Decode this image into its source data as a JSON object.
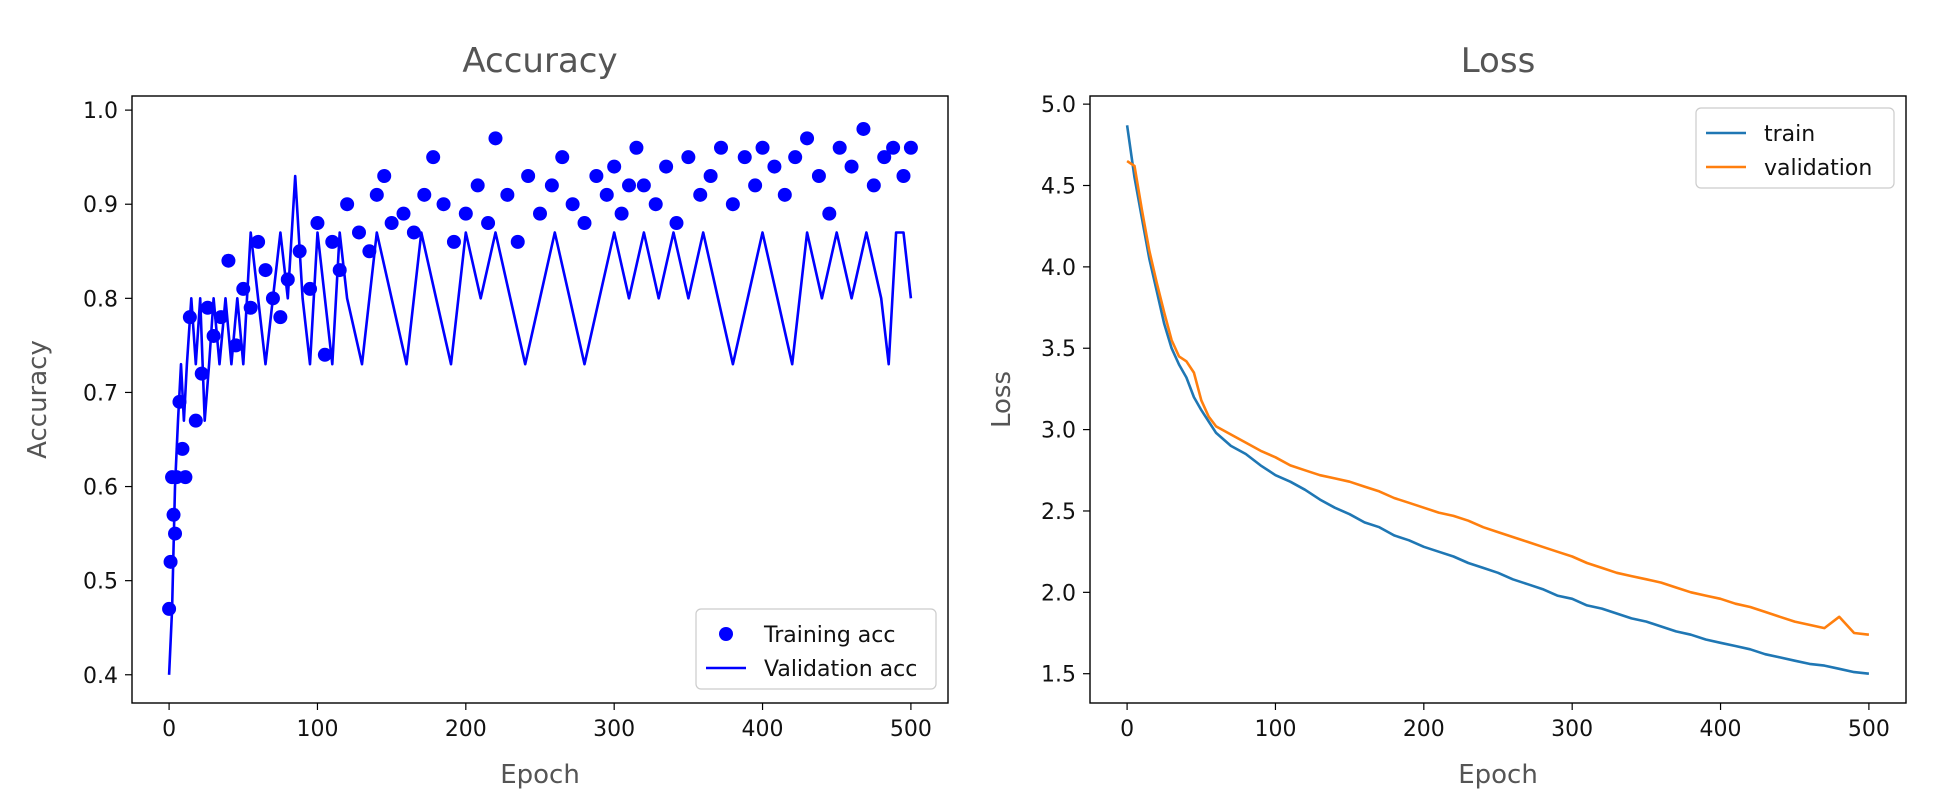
{
  "chart_data": [
    {
      "type": "scatter+line",
      "title": "Accuracy",
      "xlabel": "Epoch",
      "ylabel": "Accuracy",
      "xlim": [
        -25,
        525
      ],
      "ylim": [
        0.37,
        1.015
      ],
      "xticks": [
        0,
        100,
        200,
        300,
        400,
        500
      ],
      "yticks": [
        0.4,
        0.5,
        0.6,
        0.7,
        0.8,
        0.9,
        1.0
      ],
      "ytick_labels": [
        "0.4",
        "0.5",
        "0.6",
        "0.7",
        "0.8",
        "0.9",
        "1.0"
      ],
      "grid": false,
      "legend_loc": "lower right",
      "series": [
        {
          "name": "Training acc",
          "kind": "scatter",
          "color": "#0000ff",
          "x": [
            0,
            1,
            2,
            3,
            4,
            5,
            7,
            9,
            11,
            14,
            18,
            22,
            26,
            30,
            35,
            40,
            45,
            50,
            55,
            60,
            65,
            70,
            75,
            80,
            88,
            95,
            100,
            105,
            110,
            115,
            120,
            128,
            135,
            140,
            145,
            150,
            158,
            165,
            172,
            178,
            185,
            192,
            200,
            208,
            215,
            220,
            228,
            235,
            242,
            250,
            258,
            265,
            272,
            280,
            288,
            295,
            300,
            305,
            310,
            315,
            320,
            328,
            335,
            342,
            350,
            358,
            365,
            372,
            380,
            388,
            395,
            400,
            408,
            415,
            422,
            430,
            438,
            445,
            452,
            460,
            468,
            475,
            482,
            488,
            495,
            500
          ],
          "y": [
            0.47,
            0.52,
            0.61,
            0.57,
            0.55,
            0.61,
            0.69,
            0.64,
            0.61,
            0.78,
            0.67,
            0.72,
            0.79,
            0.76,
            0.78,
            0.84,
            0.75,
            0.81,
            0.79,
            0.86,
            0.83,
            0.8,
            0.78,
            0.82,
            0.85,
            0.81,
            0.88,
            0.74,
            0.86,
            0.83,
            0.9,
            0.87,
            0.85,
            0.91,
            0.93,
            0.88,
            0.89,
            0.87,
            0.91,
            0.95,
            0.9,
            0.86,
            0.89,
            0.92,
            0.88,
            0.97,
            0.91,
            0.86,
            0.93,
            0.89,
            0.92,
            0.95,
            0.9,
            0.88,
            0.93,
            0.91,
            0.94,
            0.89,
            0.92,
            0.96,
            0.92,
            0.9,
            0.94,
            0.88,
            0.95,
            0.91,
            0.93,
            0.96,
            0.9,
            0.95,
            0.92,
            0.96,
            0.94,
            0.91,
            0.95,
            0.97,
            0.93,
            0.89,
            0.96,
            0.94,
            0.98,
            0.92,
            0.95,
            0.96,
            0.93,
            0.96
          ]
        },
        {
          "name": "Validation acc",
          "kind": "line",
          "color": "#0000ff",
          "x": [
            0,
            2,
            4,
            6,
            8,
            10,
            12,
            15,
            18,
            21,
            24,
            27,
            30,
            34,
            38,
            42,
            46,
            50,
            55,
            60,
            65,
            70,
            75,
            80,
            85,
            90,
            95,
            100,
            105,
            110,
            115,
            120,
            130,
            140,
            150,
            160,
            170,
            180,
            190,
            200,
            210,
            220,
            230,
            240,
            250,
            260,
            270,
            280,
            290,
            300,
            310,
            320,
            330,
            340,
            350,
            360,
            370,
            380,
            390,
            400,
            410,
            420,
            430,
            440,
            450,
            460,
            470,
            480,
            485,
            490,
            495,
            500
          ],
          "y": [
            0.4,
            0.47,
            0.6,
            0.67,
            0.73,
            0.67,
            0.73,
            0.8,
            0.73,
            0.8,
            0.67,
            0.73,
            0.8,
            0.73,
            0.8,
            0.73,
            0.8,
            0.73,
            0.87,
            0.8,
            0.73,
            0.8,
            0.87,
            0.8,
            0.93,
            0.8,
            0.73,
            0.87,
            0.8,
            0.73,
            0.87,
            0.8,
            0.73,
            0.87,
            0.8,
            0.73,
            0.87,
            0.8,
            0.73,
            0.87,
            0.8,
            0.87,
            0.8,
            0.73,
            0.8,
            0.87,
            0.8,
            0.73,
            0.8,
            0.87,
            0.8,
            0.87,
            0.8,
            0.87,
            0.8,
            0.87,
            0.8,
            0.73,
            0.8,
            0.87,
            0.8,
            0.73,
            0.87,
            0.8,
            0.87,
            0.8,
            0.87,
            0.8,
            0.73,
            0.87,
            0.87,
            0.8
          ]
        }
      ]
    },
    {
      "type": "line",
      "title": "Loss",
      "xlabel": "Epoch",
      "ylabel": "Loss",
      "xlim": [
        -25,
        525
      ],
      "ylim": [
        1.32,
        5.05
      ],
      "xticks": [
        0,
        100,
        200,
        300,
        400,
        500
      ],
      "yticks": [
        1.5,
        2.0,
        2.5,
        3.0,
        3.5,
        4.0,
        4.5,
        5.0
      ],
      "ytick_labels": [
        "1.5",
        "2.0",
        "2.5",
        "3.0",
        "3.5",
        "4.0",
        "4.5",
        "5.0"
      ],
      "grid": false,
      "legend_loc": "upper right",
      "series": [
        {
          "name": "train",
          "color": "#1f77b4",
          "x": [
            0,
            5,
            10,
            15,
            20,
            25,
            30,
            35,
            40,
            45,
            50,
            55,
            60,
            70,
            80,
            90,
            100,
            110,
            120,
            130,
            140,
            150,
            160,
            170,
            180,
            190,
            200,
            210,
            220,
            230,
            240,
            250,
            260,
            270,
            280,
            290,
            300,
            310,
            320,
            330,
            340,
            350,
            360,
            370,
            380,
            390,
            400,
            410,
            420,
            430,
            440,
            450,
            460,
            470,
            480,
            490,
            500
          ],
          "y": [
            4.87,
            4.55,
            4.3,
            4.05,
            3.85,
            3.65,
            3.5,
            3.4,
            3.32,
            3.2,
            3.12,
            3.05,
            2.98,
            2.9,
            2.85,
            2.78,
            2.72,
            2.68,
            2.63,
            2.57,
            2.52,
            2.48,
            2.43,
            2.4,
            2.35,
            2.32,
            2.28,
            2.25,
            2.22,
            2.18,
            2.15,
            2.12,
            2.08,
            2.05,
            2.02,
            1.98,
            1.96,
            1.92,
            1.9,
            1.87,
            1.84,
            1.82,
            1.79,
            1.76,
            1.74,
            1.71,
            1.69,
            1.67,
            1.65,
            1.62,
            1.6,
            1.58,
            1.56,
            1.55,
            1.53,
            1.51,
            1.5
          ]
        },
        {
          "name": "validation",
          "color": "#ff7f0e",
          "x": [
            0,
            5,
            10,
            15,
            20,
            25,
            30,
            35,
            40,
            45,
            50,
            55,
            60,
            70,
            80,
            90,
            100,
            110,
            120,
            130,
            140,
            150,
            160,
            170,
            180,
            190,
            200,
            210,
            220,
            230,
            240,
            250,
            260,
            270,
            280,
            290,
            300,
            310,
            320,
            330,
            340,
            350,
            360,
            370,
            380,
            390,
            400,
            410,
            420,
            430,
            440,
            450,
            460,
            470,
            480,
            490,
            500
          ],
          "y": [
            4.65,
            4.62,
            4.35,
            4.1,
            3.9,
            3.72,
            3.55,
            3.45,
            3.42,
            3.35,
            3.18,
            3.08,
            3.02,
            2.97,
            2.92,
            2.87,
            2.83,
            2.78,
            2.75,
            2.72,
            2.7,
            2.68,
            2.65,
            2.62,
            2.58,
            2.55,
            2.52,
            2.49,
            2.47,
            2.44,
            2.4,
            2.37,
            2.34,
            2.31,
            2.28,
            2.25,
            2.22,
            2.18,
            2.15,
            2.12,
            2.1,
            2.08,
            2.06,
            2.03,
            2.0,
            1.98,
            1.96,
            1.93,
            1.91,
            1.88,
            1.85,
            1.82,
            1.8,
            1.78,
            1.85,
            1.75,
            1.74
          ]
        }
      ]
    }
  ]
}
